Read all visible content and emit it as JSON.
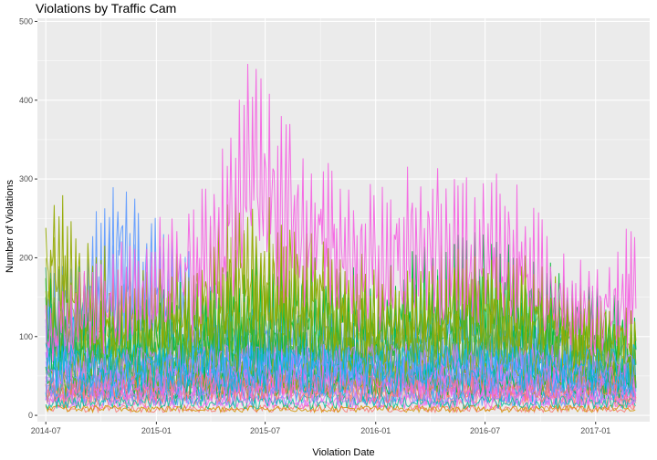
{
  "chart_data": {
    "type": "line",
    "title": "Violations by Traffic Cam",
    "xlabel": "Violation Date",
    "ylabel": "Number of Violations",
    "x_range": [
      "2014-06-17",
      "2017-04-01"
    ],
    "ylim": [
      -8,
      504
    ],
    "x_ticks": [
      {
        "date": "2014-07-01",
        "label": "2014-07"
      },
      {
        "date": "2015-01-01",
        "label": "2015-01"
      },
      {
        "date": "2015-07-01",
        "label": "2015-07"
      },
      {
        "date": "2016-01-01",
        "label": "2016-01"
      },
      {
        "date": "2016-07-01",
        "label": "2016-07"
      },
      {
        "date": "2017-01-01",
        "label": "2017-01"
      }
    ],
    "y_ticks": [
      0,
      100,
      200,
      300,
      400,
      500
    ],
    "grid": true,
    "legend": "none",
    "background": "#ebebeb",
    "series_colors": [
      "#f8766d",
      "#f564e3",
      "#619cff",
      "#00b9e3",
      "#00ba38",
      "#93aa00",
      "#c77cff",
      "#d39200",
      "#00c19f",
      "#db72fb"
    ],
    "series": [
      {
        "color": "#f564e3",
        "note_peaks": true,
        "x": [
          "2014-07-01",
          "2014-09-01",
          "2014-11-01",
          "2015-01-01",
          "2015-03-01",
          "2015-05-01",
          "2015-06-01",
          "2015-07-01",
          "2015-08-01",
          "2015-09-01",
          "2015-10-01",
          "2015-11-01",
          "2016-01-01",
          "2016-03-01",
          "2016-05-01",
          "2016-07-01",
          "2016-09-01",
          "2016-11-01",
          "2017-01-01",
          "2017-03-01"
        ],
        "y": [
          150,
          200,
          230,
          250,
          280,
          380,
          470,
          460,
          400,
          360,
          350,
          320,
          300,
          360,
          310,
          320,
          300,
          230,
          200,
          250
        ]
      },
      {
        "color": "#93aa00",
        "x": [
          "2014-07-01",
          "2014-09-01",
          "2014-11-01",
          "2015-01-01",
          "2015-03-01",
          "2015-05-01",
          "2015-07-01",
          "2015-09-01",
          "2015-11-01",
          "2016-01-01",
          "2016-03-01",
          "2016-05-01",
          "2016-07-01",
          "2016-09-01",
          "2016-11-01",
          "2017-01-01",
          "2017-03-01"
        ],
        "y": [
          320,
          240,
          210,
          200,
          220,
          280,
          300,
          250,
          230,
          200,
          210,
          220,
          230,
          210,
          190,
          180,
          150
        ]
      },
      {
        "color": "#00ba38",
        "x": [
          "2014-07-01",
          "2014-10-01",
          "2015-01-01",
          "2015-04-01",
          "2015-07-01",
          "2015-10-01",
          "2016-01-01",
          "2016-04-01",
          "2016-07-01",
          "2016-10-01",
          "2017-01-01",
          "2017-03-01"
        ],
        "y": [
          180,
          170,
          160,
          200,
          220,
          210,
          190,
          230,
          240,
          220,
          170,
          150
        ]
      },
      {
        "color": "#619cff",
        "x": [
          "2014-07-01",
          "2014-09-01",
          "2014-11-01",
          "2015-01-01",
          "2015-04-01",
          "2015-07-01",
          "2015-10-01",
          "2016-01-01",
          "2016-04-01",
          "2016-07-01",
          "2016-10-01",
          "2017-01-01",
          "2017-03-01"
        ],
        "y": [
          200,
          230,
          320,
          260,
          180,
          170,
          160,
          150,
          170,
          180,
          160,
          140,
          120
        ]
      },
      {
        "color": "#00b9e3",
        "x": [
          "2014-07-01",
          "2014-09-01",
          "2014-11-01",
          "2015-01-01",
          "2015-04-01",
          "2015-07-01",
          "2015-10-01",
          "2016-01-01",
          "2016-04-01",
          "2016-07-01",
          "2016-10-01",
          "2017-01-01",
          "2017-03-01"
        ],
        "y": [
          220,
          200,
          150,
          120,
          130,
          140,
          130,
          120,
          130,
          140,
          120,
          100,
          90
        ]
      },
      {
        "color": "#c77cff",
        "x": [
          "2014-07-01",
          "2015-01-01",
          "2015-07-01",
          "2016-01-01",
          "2016-07-01",
          "2017-01-01",
          "2017-03-01"
        ],
        "y": [
          110,
          100,
          120,
          110,
          100,
          90,
          80
        ]
      },
      {
        "color": "#f8766d",
        "x": [
          "2014-07-01",
          "2015-01-01",
          "2015-07-01",
          "2016-01-01",
          "2016-07-01",
          "2017-01-01",
          "2017-03-01"
        ],
        "y": [
          50,
          60,
          80,
          70,
          60,
          50,
          40
        ]
      }
    ]
  }
}
